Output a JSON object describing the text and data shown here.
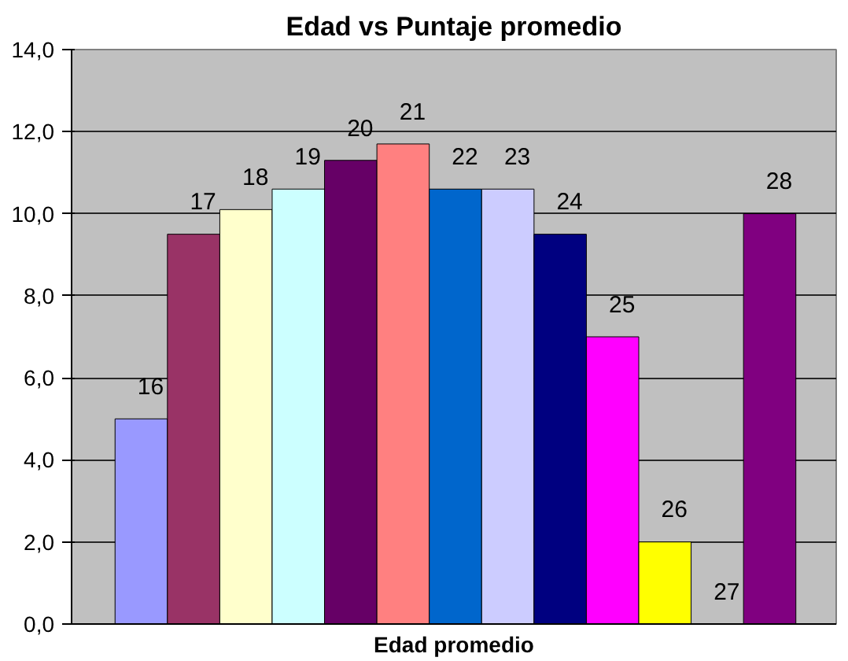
{
  "chart_data": {
    "type": "bar",
    "title": "Edad vs Puntaje promedio",
    "xlabel": "Edad promedio",
    "categories": [
      "16",
      "17",
      "18",
      "19",
      "20",
      "21",
      "22",
      "23",
      "24",
      "25",
      "26",
      "27",
      "28"
    ],
    "values": [
      5.0,
      9.5,
      10.1,
      10.6,
      11.3,
      11.7,
      10.6,
      10.6,
      9.5,
      7.0,
      2.0,
      0,
      10.0
    ],
    "colors": [
      "#9999ff",
      "#993366",
      "#ffffcc",
      "#ccffff",
      "#660066",
      "#ff8080",
      "#0066cc",
      "#ccccff",
      "#000080",
      "#ff00ff",
      "#ffff00",
      null,
      "#800080"
    ],
    "ylim": [
      0,
      14
    ],
    "yticks": [
      {
        "value": 0,
        "label": "0,0"
      },
      {
        "value": 2,
        "label": "2,0"
      },
      {
        "value": 4,
        "label": "4,0"
      },
      {
        "value": 6,
        "label": "6,0"
      },
      {
        "value": 8,
        "label": "8,0"
      },
      {
        "value": 10,
        "label": "10,0"
      },
      {
        "value": 12,
        "label": "12,0"
      },
      {
        "value": 14,
        "label": "14,0"
      }
    ],
    "grid": "y",
    "tick_labels": "y"
  }
}
